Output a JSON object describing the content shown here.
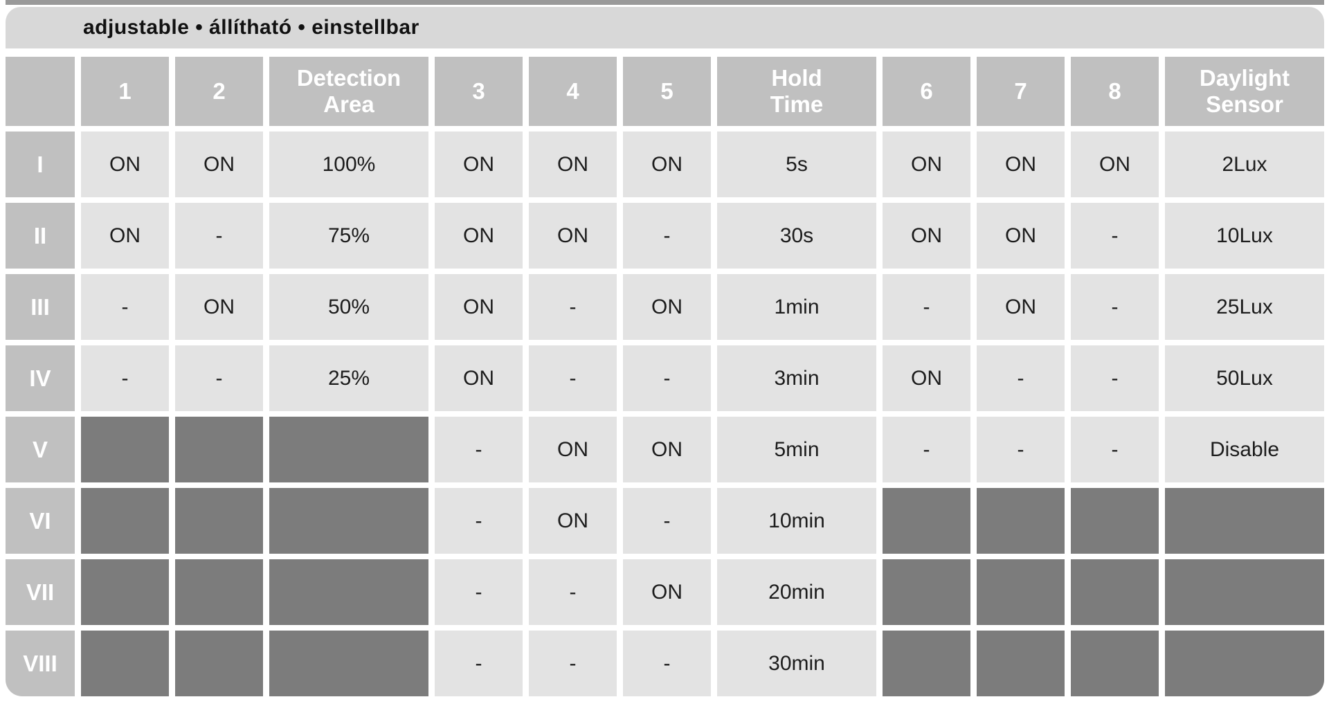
{
  "title": "adjustable • állítható • einstellbar",
  "table": {
    "corner_label": "",
    "columns": [
      {
        "label": "1"
      },
      {
        "label": "2"
      },
      {
        "label": "Detection\nArea"
      },
      {
        "label": "3"
      },
      {
        "label": "4"
      },
      {
        "label": "5"
      },
      {
        "label": "Hold\nTime"
      },
      {
        "label": "6"
      },
      {
        "label": "7"
      },
      {
        "label": "8"
      },
      {
        "label": "Daylight\nSensor"
      }
    ],
    "rows": [
      {
        "label": "I",
        "cells": [
          "ON",
          "ON",
          "100%",
          "ON",
          "ON",
          "ON",
          "5s",
          "ON",
          "ON",
          "ON",
          "2Lux"
        ]
      },
      {
        "label": "II",
        "cells": [
          "ON",
          "-",
          "75%",
          "ON",
          "ON",
          "-",
          "30s",
          "ON",
          "ON",
          "-",
          "10Lux"
        ]
      },
      {
        "label": "III",
        "cells": [
          "-",
          "ON",
          "50%",
          "ON",
          "-",
          "ON",
          "1min",
          "-",
          "ON",
          "-",
          "25Lux"
        ]
      },
      {
        "label": "IV",
        "cells": [
          "-",
          "-",
          "25%",
          "ON",
          "-",
          "-",
          "3min",
          "ON",
          "-",
          "-",
          "50Lux"
        ]
      },
      {
        "label": "V",
        "cells": [
          null,
          null,
          null,
          "-",
          "ON",
          "ON",
          "5min",
          "-",
          "-",
          "-",
          "Disable"
        ]
      },
      {
        "label": "VI",
        "cells": [
          null,
          null,
          null,
          "-",
          "ON",
          "-",
          "10min",
          null,
          null,
          null,
          null
        ]
      },
      {
        "label": "VII",
        "cells": [
          null,
          null,
          null,
          "-",
          "-",
          "ON",
          "20min",
          null,
          null,
          null,
          null
        ]
      },
      {
        "label": "VIII",
        "cells": [
          null,
          null,
          null,
          "-",
          "-",
          "-",
          "30min",
          null,
          null,
          null,
          null
        ]
      }
    ]
  },
  "colors": {
    "title_bar": "#d8d8d8",
    "header_cell": "#c0c0c0",
    "row_label": "#c0c0c0",
    "data_cell": "#e3e3e3",
    "disabled_cell": "#7c7c7c",
    "top_strip": "#9a9a9a",
    "header_text": "#ffffff",
    "data_text": "#1c1c1c",
    "title_text": "#111111"
  }
}
